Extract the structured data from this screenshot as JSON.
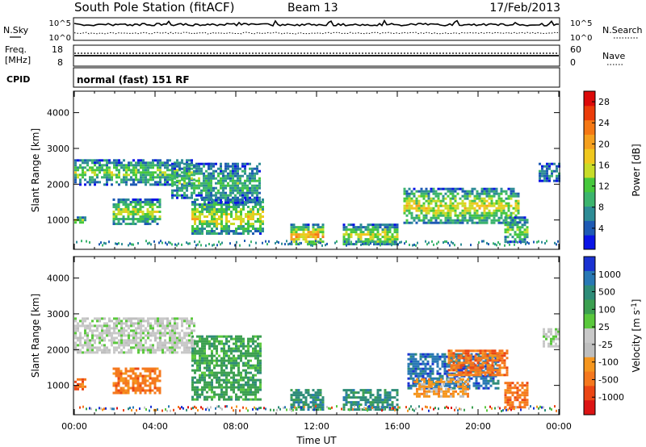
{
  "header": {
    "title": "South Pole Station (fitACF)",
    "beam": "Beam 13",
    "date": "17/Feb/2013"
  },
  "noise_panel": {
    "left_label": "N.Sky",
    "right_label": "N.Search",
    "left_ticks": [
      "10^5",
      "10^0"
    ],
    "right_ticks": [
      "10^5",
      "10^0"
    ]
  },
  "freq_panel": {
    "left_label_line1": "Freq.",
    "left_label_line2": "[MHz]",
    "right_label": "Nave",
    "left_ticks": [
      "18",
      "8"
    ],
    "right_ticks": [
      "60",
      "0"
    ]
  },
  "cpid_panel": {
    "label": "CPID",
    "text": "normal (fast) 151 RF"
  },
  "colors": {
    "power_scale": [
      "#0a14e6",
      "#1e5ab4",
      "#2e8c96",
      "#3cb46e",
      "#46c83c",
      "#c8dc28",
      "#f0c81e",
      "#f5a01e",
      "#f57814",
      "#eb3c0a",
      "#dc0a0a"
    ],
    "velocity_scale": [
      "#1a32d2",
      "#2878b4",
      "#2e8c78",
      "#3ca050",
      "#5ac83c",
      "#c8c8c8",
      "#bebebe",
      "#f5961e",
      "#f5781e",
      "#eb4614",
      "#dc1414"
    ]
  },
  "chart_data": [
    {
      "type": "heatmap",
      "panel": "power",
      "ylabel": "Slant Range [km]",
      "xlabel": "",
      "y_ticks": [
        "1000",
        "2000",
        "3000",
        "4000"
      ],
      "x_ticks": [
        "00:00",
        "04:00",
        "08:00",
        "12:00",
        "16:00",
        "20:00",
        "00:00"
      ],
      "xlim_hours": [
        0,
        24
      ],
      "ylim_km": [
        180,
        4600
      ],
      "colorbar": {
        "label": "Power [dB]",
        "ticks": [
          "4",
          "8",
          "12",
          "16",
          "20",
          "24",
          "28"
        ],
        "range": [
          0,
          30
        ]
      },
      "bands": [
        {
          "x": [
            0.0,
            6.0
          ],
          "y": [
            2000,
            2700
          ],
          "level": 0.45
        },
        {
          "x": [
            0.0,
            0.5
          ],
          "y": [
            900,
            1100
          ],
          "level": 0.5
        },
        {
          "x": [
            1.9,
            4.3
          ],
          "y": [
            900,
            1600
          ],
          "level": 0.55
        },
        {
          "x": [
            4.8,
            6.8
          ],
          "y": [
            1600,
            2600
          ],
          "level": 0.4
        },
        {
          "x": [
            5.8,
            9.3
          ],
          "y": [
            600,
            1600
          ],
          "level": 0.6
        },
        {
          "x": [
            6.6,
            9.2
          ],
          "y": [
            1500,
            2600
          ],
          "level": 0.35
        },
        {
          "x": [
            10.7,
            12.3
          ],
          "y": [
            300,
            900
          ],
          "level": 0.75
        },
        {
          "x": [
            13.3,
            16.0
          ],
          "y": [
            300,
            900
          ],
          "level": 0.6
        },
        {
          "x": [
            16.3,
            22.0
          ],
          "y": [
            900,
            1900
          ],
          "level": 0.6
        },
        {
          "x": [
            21.3,
            22.5
          ],
          "y": [
            400,
            1100
          ],
          "level": 0.45
        },
        {
          "x": [
            23.0,
            24.0
          ],
          "y": [
            2100,
            2600
          ],
          "level": 0.25
        }
      ]
    },
    {
      "type": "heatmap",
      "panel": "velocity",
      "ylabel": "Slant Range [km]",
      "xlabel": "Time UT",
      "y_ticks": [
        "1000",
        "2000",
        "3000",
        "4000"
      ],
      "x_ticks": [
        "00:00",
        "04:00",
        "08:00",
        "12:00",
        "16:00",
        "20:00",
        "00:00"
      ],
      "xlim_hours": [
        0,
        24
      ],
      "ylim_km": [
        180,
        4600
      ],
      "colorbar": {
        "label": "Velocity [m s",
        "label_sup": "-1",
        "label_end": "]",
        "ticks": [
          "1000",
          "500",
          "100",
          "25",
          "-25",
          "-100",
          "-500",
          "-1000"
        ]
      },
      "bands": [
        {
          "x": [
            0.0,
            6.0
          ],
          "y": [
            1900,
            2900
          ],
          "cat": 5
        },
        {
          "x": [
            0.0,
            0.5
          ],
          "y": [
            900,
            1200
          ],
          "cat": 8
        },
        {
          "x": [
            1.9,
            4.3
          ],
          "y": [
            800,
            1500
          ],
          "cat": 8
        },
        {
          "x": [
            5.8,
            9.2
          ],
          "y": [
            600,
            2400
          ],
          "cat": 3
        },
        {
          "x": [
            10.7,
            12.3
          ],
          "y": [
            300,
            900
          ],
          "cat": 2
        },
        {
          "x": [
            13.3,
            16.0
          ],
          "y": [
            300,
            900
          ],
          "cat": 2
        },
        {
          "x": [
            16.5,
            21.0
          ],
          "y": [
            900,
            1900
          ],
          "cat": 1
        },
        {
          "x": [
            16.8,
            19.5
          ],
          "y": [
            700,
            1200
          ],
          "cat": 7
        },
        {
          "x": [
            18.5,
            21.5
          ],
          "y": [
            1300,
            2000
          ],
          "cat": 8
        },
        {
          "x": [
            21.3,
            22.5
          ],
          "y": [
            400,
            1100
          ],
          "cat": 8
        },
        {
          "x": [
            23.2,
            24.0
          ],
          "y": [
            2100,
            2600
          ],
          "cat": 5
        }
      ]
    }
  ]
}
